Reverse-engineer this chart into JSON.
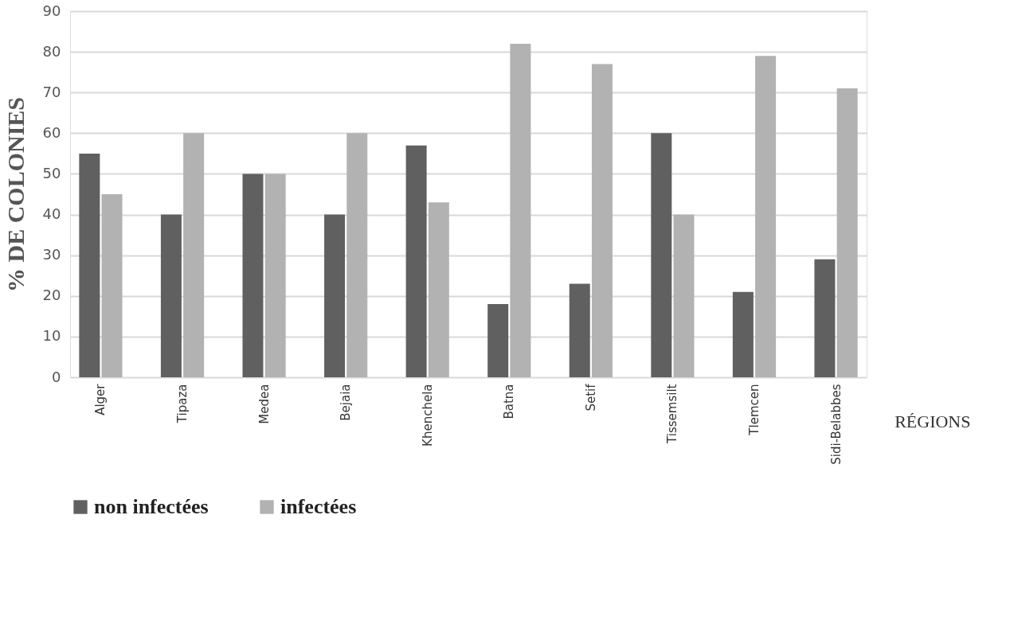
{
  "chart_data": {
    "type": "bar",
    "categories": [
      "Alger",
      "Tipaza",
      "Medea",
      "Bejaia",
      "Khenchela",
      "Batna",
      "Setif",
      "Tissemsilt",
      "Tlemcen",
      "Sidi-Belabbes"
    ],
    "series": [
      {
        "name": "non infectées",
        "color": "#606060",
        "values": [
          55,
          40,
          50,
          40,
          57,
          18,
          23,
          60,
          21,
          29
        ]
      },
      {
        "name": "infectées",
        "color": "#b2b2b2",
        "values": [
          45,
          60,
          50,
          60,
          43,
          82,
          77,
          40,
          79,
          71
        ]
      }
    ],
    "xlabel": "RÉGIONS",
    "ylabel": "% DE COLONIES",
    "ylim": [
      0,
      90
    ],
    "yticks": [
      0,
      10,
      20,
      30,
      40,
      50,
      60,
      70,
      80,
      90
    ],
    "grid": "y",
    "legend": "bottom"
  }
}
